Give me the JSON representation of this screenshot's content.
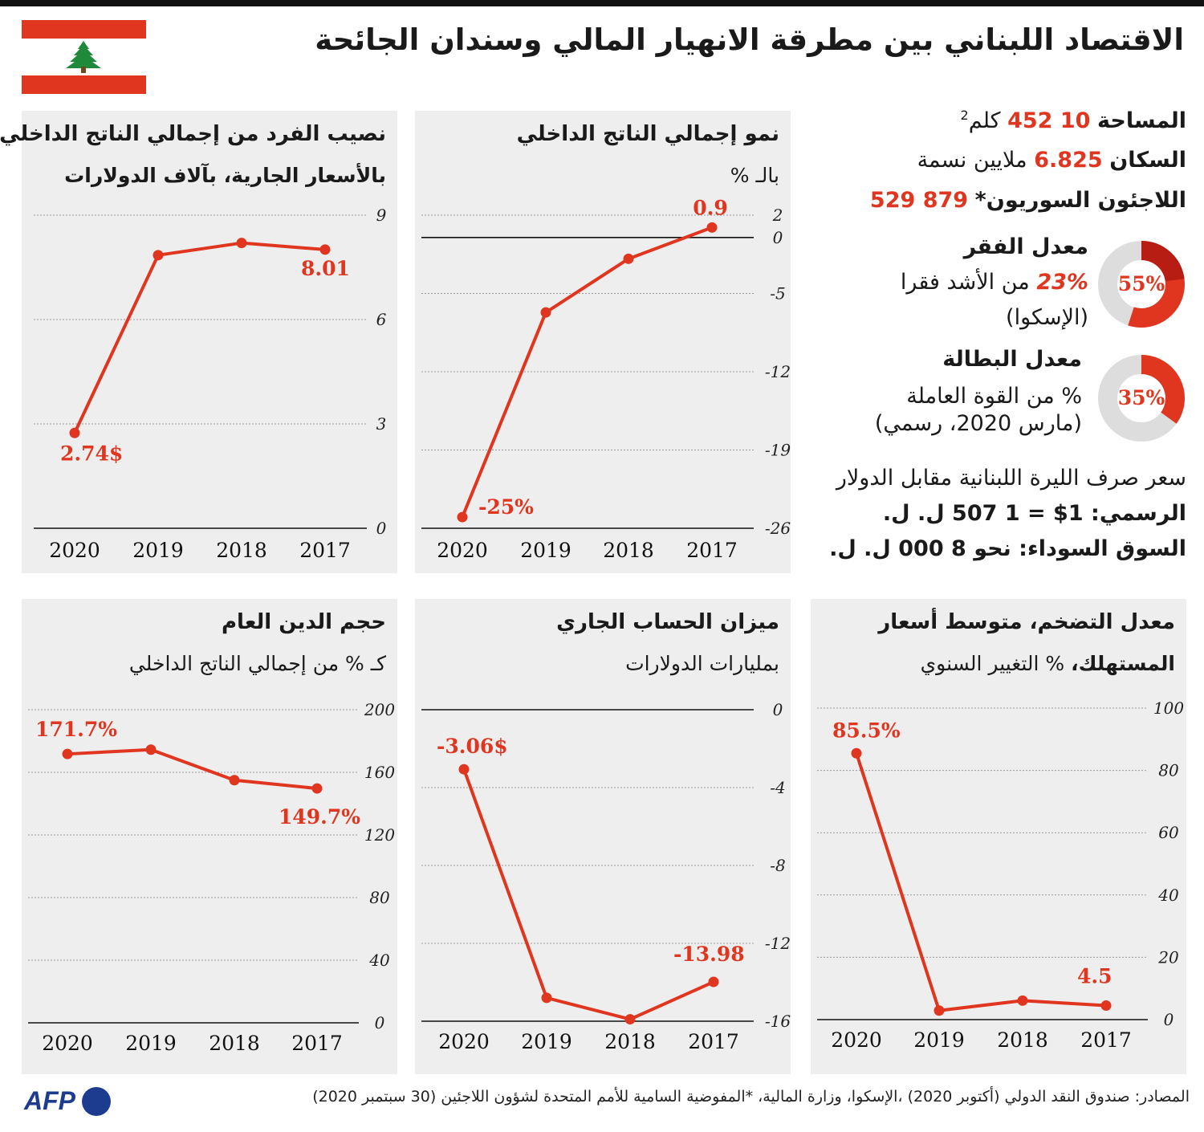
{
  "title": "الاقتصاد اللبناني بين مطرقة الانهيار المالي وسندان الجائحة",
  "facts": {
    "area_label": "المساحة",
    "area_value": "10 452",
    "area_unit": "كلم",
    "area_sup": "2",
    "population_label": "السكان",
    "population_value": "6.825",
    "population_unit": "ملايين نسمة",
    "refugees_label": "اللاجئون السوريون*",
    "refugees_value": "879 529",
    "poverty_title": "معدل الفقر",
    "poverty_extreme_value": "23%",
    "poverty_extreme_text": "من الأشد فقرا",
    "poverty_source": "(الإسكوا)",
    "poverty_donut_label": "55%",
    "poverty_share": 0.55,
    "poverty_extreme_share": 0.23,
    "unemployment_title": "معدل البطالة",
    "unemployment_text": "% من القوة العاملة",
    "unemployment_note": "(مارس 2020، رسمي)",
    "unemployment_donut_label": "35%",
    "unemployment_share": 0.35,
    "fx_title": "سعر صرف الليرة اللبنانية مقابل الدولار",
    "fx_official": "الرسمي: 1$ = 1 507 ل. ل.",
    "fx_black": "السوق السوداء: نحو 8 000 ل. ل."
  },
  "colors": {
    "accent": "#e0351f",
    "dark_red": "#b81d14",
    "donut_bg": "#dddddd",
    "panel_bg": "#eeeeee",
    "brand": "#1d3c8f"
  },
  "footer": "المصادر: صندوق النقد الدولي (أكتوبر 2020) ،الإسكوا، وزارة المالية، *المفوضية السامية للأمم المتحدة لشؤون اللاجئين (30 سبتمبر 2020)",
  "logo": "AFP",
  "chart_data": [
    {
      "id": "gdp_per_capita",
      "type": "line",
      "title": "نصيب الفرد من إجمالي الناتج الداخلي",
      "subtitle": "بالأسعار الجارية، بآلاف الدولارات",
      "categories": [
        "2020",
        "2019",
        "2018",
        "2017"
      ],
      "values": [
        2.74,
        7.85,
        8.2,
        8.01
      ],
      "labels": [
        "2.74$",
        "",
        "",
        "8.01"
      ],
      "yticks": [
        "9",
        "6",
        "3",
        "0"
      ],
      "ylim": [
        0,
        9
      ],
      "y_axis": "right",
      "grid": true
    },
    {
      "id": "gdp_growth",
      "type": "line",
      "title": "نمو إجمالي الناتج الداخلي",
      "subtitle": "بالـ %",
      "categories": [
        "2020",
        "2019",
        "2018",
        "2017"
      ],
      "values": [
        -25,
        -6.7,
        -1.9,
        0.9
      ],
      "labels": [
        "-25%",
        "",
        "",
        "0.9"
      ],
      "yticks": [
        "2",
        "0",
        "-5",
        "-12",
        "-19",
        "-26"
      ],
      "ylim": [
        -26,
        2
      ],
      "y_axis": "right",
      "grid": true
    },
    {
      "id": "public_debt",
      "type": "line",
      "title": "حجم الدين العام",
      "subtitle": "كـ % من إجمالي الناتج الداخلي",
      "categories": [
        "2020",
        "2019",
        "2018",
        "2017"
      ],
      "values": [
        171.7,
        174.5,
        155,
        149.7
      ],
      "labels": [
        "171.7%",
        "",
        "",
        "149.7%"
      ],
      "yticks": [
        "200",
        "160",
        "120",
        "80",
        "40",
        "0"
      ],
      "ylim": [
        0,
        200
      ],
      "y_axis": "right",
      "grid": true
    },
    {
      "id": "current_account",
      "type": "line",
      "title": "ميزان الحساب الجاري",
      "subtitle": "بمليارات الدولارات",
      "categories": [
        "2020",
        "2019",
        "2018",
        "2017"
      ],
      "values": [
        -3.06,
        -14.8,
        -15.9,
        -13.98
      ],
      "labels": [
        "-3.06$",
        "",
        "",
        "-13.98"
      ],
      "yticks": [
        "0",
        "-4",
        "-8",
        "-12",
        "-16"
      ],
      "ylim": [
        -16,
        0
      ],
      "y_axis": "right",
      "grid": true
    },
    {
      "id": "inflation",
      "type": "line",
      "title": "معدل التضخم، متوسط أسعار",
      "subtitle_bold": "المستهلك،",
      "subtitle": "% التغيير السنوي",
      "categories": [
        "2020",
        "2019",
        "2018",
        "2017"
      ],
      "values": [
        85.5,
        2.9,
        6.1,
        4.5
      ],
      "labels": [
        "85.5%",
        "",
        "",
        "4.5"
      ],
      "yticks": [
        "100",
        "80",
        "60",
        "40",
        "20",
        "0"
      ],
      "ylim": [
        0,
        100
      ],
      "y_axis": "right",
      "grid": true
    }
  ]
}
